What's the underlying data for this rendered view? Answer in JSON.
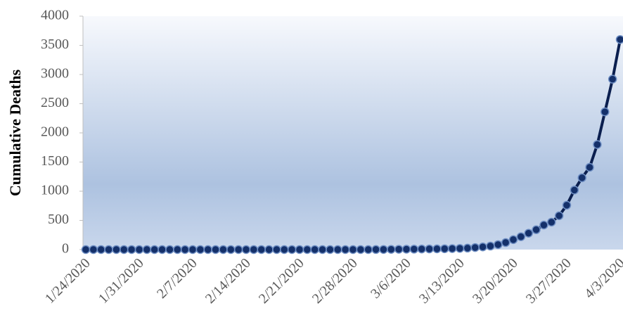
{
  "chart_data": {
    "type": "line",
    "y_label": "Cumulative Deaths",
    "categories": [
      "1/24/2020",
      null,
      null,
      null,
      null,
      null,
      null,
      "1/31/2020",
      null,
      null,
      null,
      null,
      null,
      null,
      "2/7/2020",
      null,
      null,
      null,
      null,
      null,
      null,
      "2/14/2020",
      null,
      null,
      null,
      null,
      null,
      null,
      "2/21/2020",
      null,
      null,
      null,
      null,
      null,
      null,
      "2/28/2020",
      null,
      null,
      null,
      null,
      null,
      null,
      "3/6/2020",
      null,
      null,
      null,
      null,
      null,
      null,
      "3/13/2020",
      null,
      null,
      null,
      null,
      null,
      null,
      "3/20/2020",
      null,
      null,
      null,
      null,
      null,
      null,
      "3/27/2020",
      null,
      null,
      null,
      null,
      null,
      null,
      "4/3/2020"
    ],
    "series": [
      {
        "name": "Cumulative Deaths",
        "color": "#0b1f4f",
        "marker_color": "#14306a",
        "marker_edge": "#6f8fc4",
        "values": [
          0,
          0,
          0,
          0,
          0,
          0,
          0,
          0,
          0,
          0,
          0,
          0,
          0,
          0,
          0,
          0,
          0,
          0,
          0,
          0,
          0,
          0,
          0,
          0,
          0,
          0,
          0,
          0,
          0,
          0,
          0,
          0,
          0,
          0,
          0,
          0,
          0,
          0,
          1,
          2,
          3,
          5,
          6,
          7,
          9,
          11,
          12,
          14,
          17,
          20,
          25,
          35,
          45,
          60,
          85,
          120,
          170,
          220,
          280,
          340,
          420,
          470,
          580,
          760,
          1020,
          1230,
          1410,
          1800,
          2360,
          2920,
          3600
        ]
      }
    ],
    "ylim": [
      0,
      4000
    ],
    "yticks": [
      0,
      500,
      1000,
      1500,
      2000,
      2500,
      3000,
      3500,
      4000
    ],
    "grid": false
  }
}
